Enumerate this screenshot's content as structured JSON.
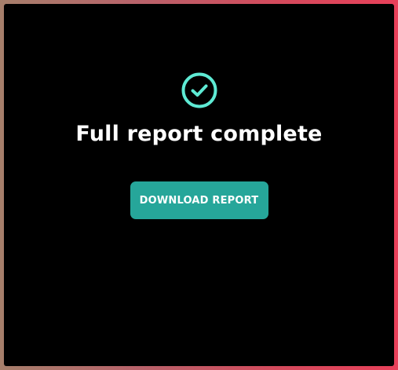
{
  "dialog": {
    "status_icon": "check-circle-icon",
    "title": "Full report complete",
    "download_label": "DOWNLOAD REPORT"
  },
  "colors": {
    "accent": "#26a69a",
    "icon": "#5eead4",
    "background": "#000000",
    "border_start": "#a67f6b",
    "border_end": "#e8405a"
  }
}
